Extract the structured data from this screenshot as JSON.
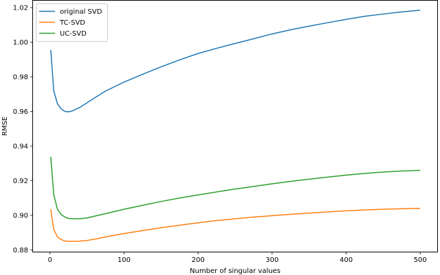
{
  "chart_data": {
    "type": "line",
    "title": "",
    "xlabel": "Number of singular values",
    "ylabel": "RMSE",
    "xlim": [
      -23,
      523
    ],
    "ylim": [
      0.879,
      1.024
    ],
    "xticks": [
      0,
      100,
      200,
      300,
      400,
      500
    ],
    "yticks": [
      0.88,
      0.9,
      0.92,
      0.94,
      0.96,
      0.98,
      1.0,
      1.02
    ],
    "ytick_labels": [
      "0.88",
      "0.90",
      "0.92",
      "0.94",
      "0.96",
      "0.98",
      "1.00",
      "1.02"
    ],
    "grid": false,
    "legend": "top-left",
    "x": [
      1,
      5,
      10,
      15,
      20,
      25,
      30,
      40,
      50,
      60,
      75,
      100,
      125,
      150,
      175,
      200,
      225,
      250,
      275,
      300,
      325,
      350,
      375,
      400,
      425,
      450,
      475,
      500
    ],
    "series": [
      {
        "name": "original SVD",
        "color": "#1f77b4",
        "values": [
          0.9955,
          0.972,
          0.9645,
          0.9615,
          0.96,
          0.9598,
          0.9603,
          0.9623,
          0.965,
          0.9678,
          0.9718,
          0.977,
          0.9815,
          0.9858,
          0.9898,
          0.9935,
          0.9965,
          0.9993,
          1.002,
          1.0048,
          1.0072,
          1.0093,
          1.0113,
          1.0132,
          1.015,
          1.0163,
          1.0175,
          1.0185
        ]
      },
      {
        "name": "TC-SVD",
        "color": "#ff7f0e",
        "values": [
          0.9035,
          0.892,
          0.8875,
          0.886,
          0.8852,
          0.885,
          0.885,
          0.8851,
          0.8855,
          0.8862,
          0.8875,
          0.8895,
          0.8912,
          0.8928,
          0.8943,
          0.8957,
          0.897,
          0.898,
          0.899,
          0.8998,
          0.9006,
          0.9013,
          0.902,
          0.9026,
          0.9031,
          0.9035,
          0.9038,
          0.904
        ]
      },
      {
        "name": "UC-SVD",
        "color": "#2ca02c",
        "values": [
          0.9338,
          0.912,
          0.9035,
          0.9005,
          0.899,
          0.8982,
          0.898,
          0.898,
          0.8985,
          0.8995,
          0.901,
          0.9035,
          0.9058,
          0.908,
          0.91,
          0.9118,
          0.9135,
          0.9152,
          0.9167,
          0.9182,
          0.9196,
          0.9209,
          0.9221,
          0.9232,
          0.9242,
          0.925,
          0.9256,
          0.926
        ]
      }
    ]
  }
}
